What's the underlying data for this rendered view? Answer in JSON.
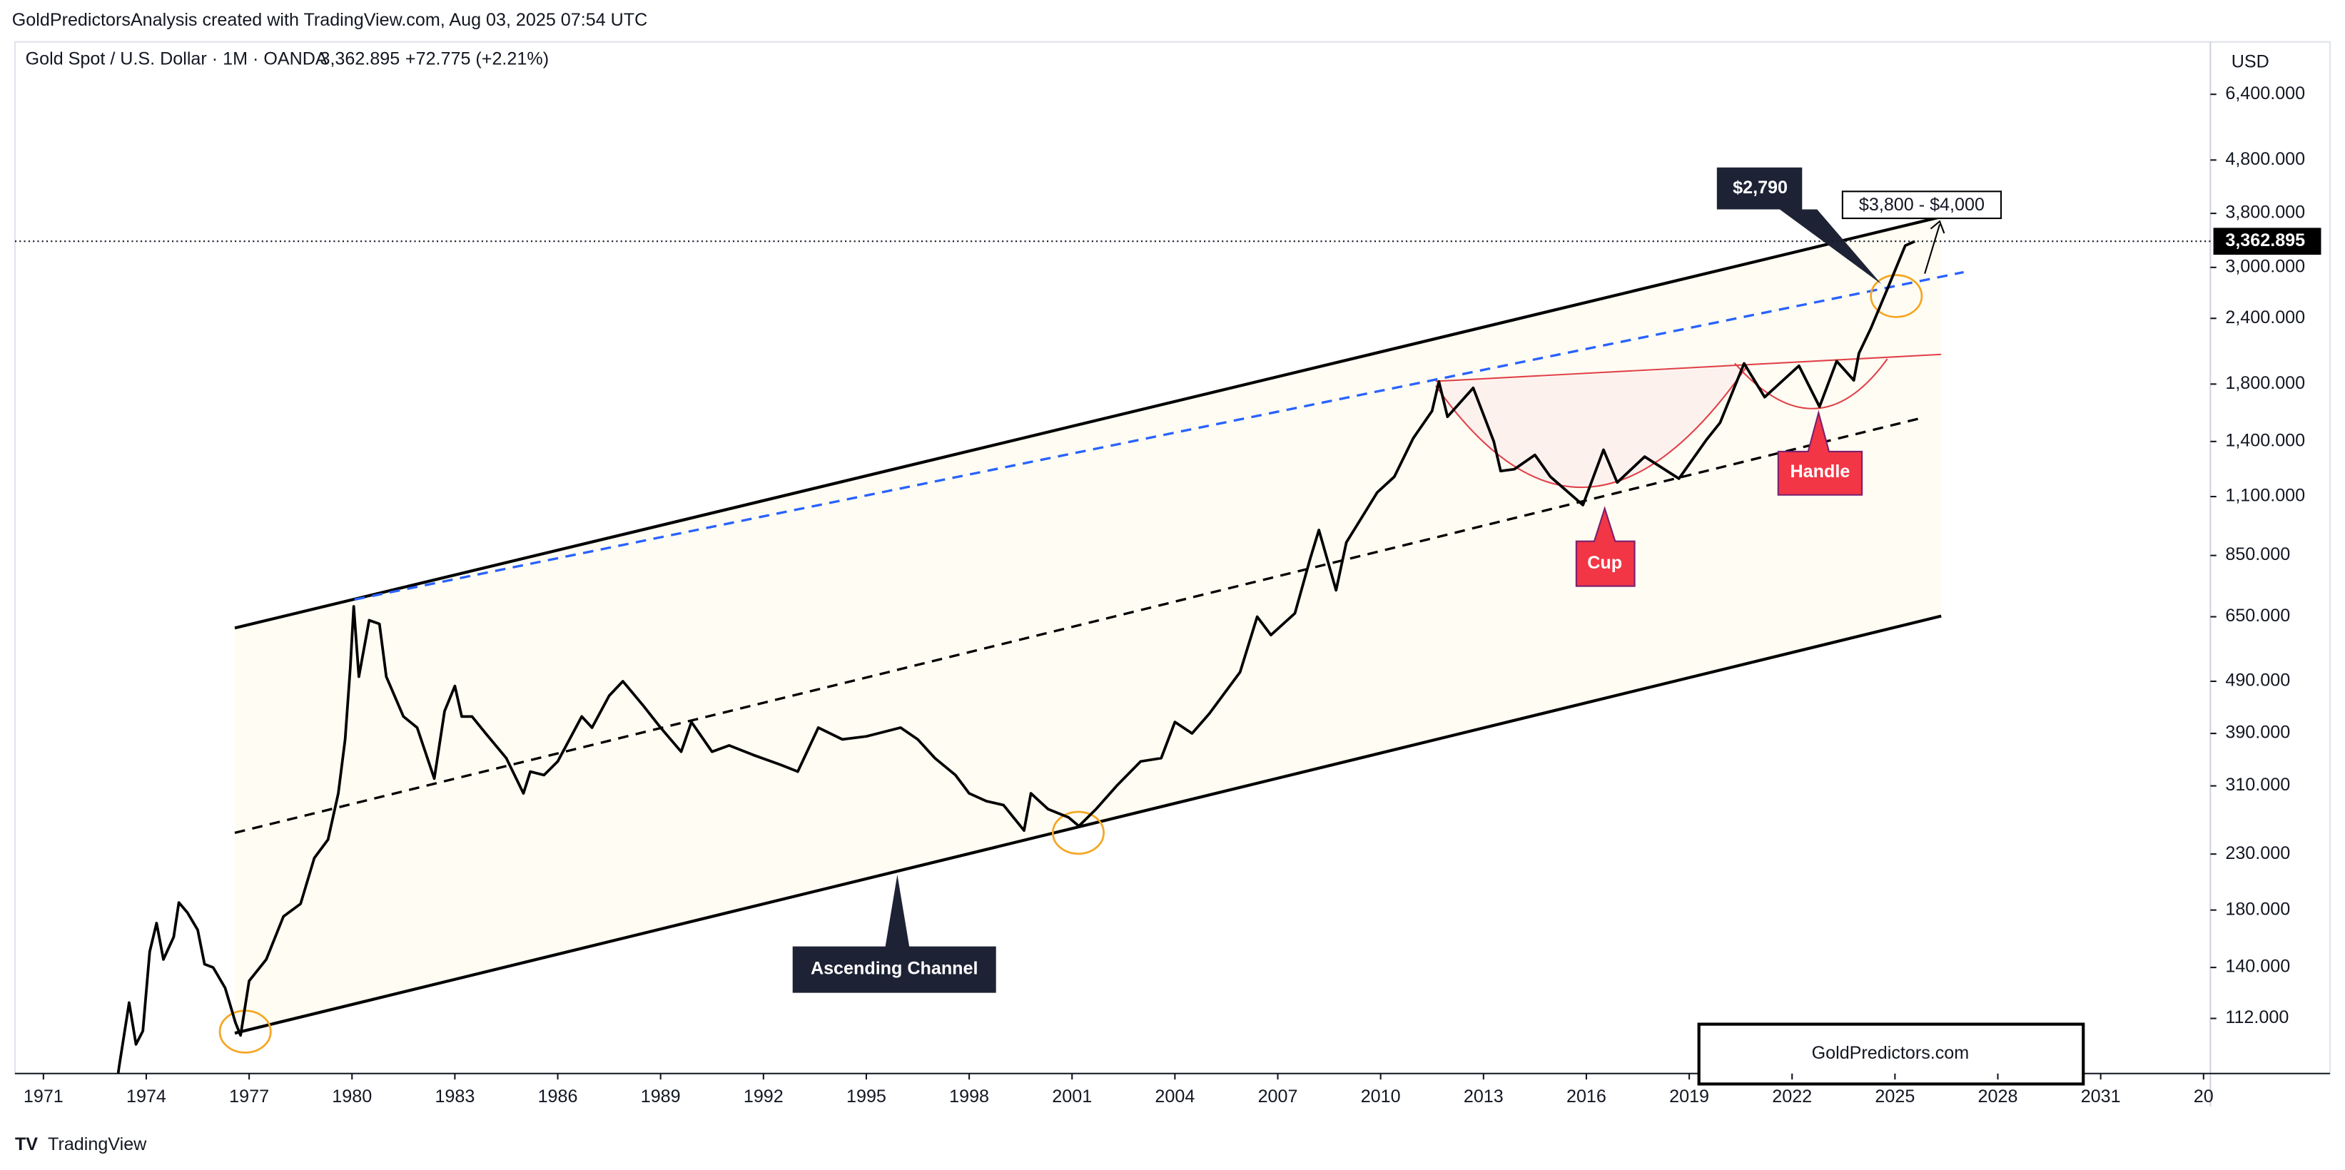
{
  "chart_data": {
    "type": "line",
    "header": "GoldPredictorsAnalysis created with TradingView.com, Aug 03, 2025 07:54 UTC",
    "symbol": "Gold Spot / U.S. Dollar · 1M · OANDA",
    "last_price": {
      "value": 3362.895,
      "label": "3,362.895"
    },
    "change": "+72.775 (+2.21%)",
    "currency": "USD",
    "footer": "TradingView",
    "watermark": "GoldPredictors.com",
    "annotations": [
      "$2,790",
      "$3,800 - $4,000",
      "Ascending Channel",
      "Cup",
      "Handle"
    ],
    "color": "#000000",
    "log_scale": true,
    "x": [
      1972.9,
      1973.2,
      1973.5,
      1973.7,
      1973.9,
      1974.1,
      1974.3,
      1974.5,
      1974.8,
      1974.95,
      1975.2,
      1975.5,
      1975.7,
      1975.95,
      1976.3,
      1976.6,
      1976.75,
      1977.0,
      1977.5,
      1978.0,
      1978.5,
      1978.9,
      1979.3,
      1979.6,
      1979.8,
      1979.95,
      1980.05,
      1980.2,
      1980.5,
      1980.8,
      1981.0,
      1981.5,
      1981.9,
      1982.4,
      1982.7,
      1983.0,
      1983.2,
      1983.5,
      1983.9,
      1984.5,
      1985.0,
      1985.2,
      1985.6,
      1986.0,
      1986.7,
      1987.0,
      1987.5,
      1987.9,
      1988.5,
      1989.0,
      1989.6,
      1989.9,
      1990.5,
      1991.0,
      1991.7,
      1992.5,
      1993.0,
      1993.6,
      1994.3,
      1995.0,
      1996.0,
      1996.5,
      1997.0,
      1997.6,
      1998.0,
      1998.5,
      1999.0,
      1999.6,
      1999.8,
      2000.3,
      2000.9,
      2001.2,
      2001.7,
      2002.3,
      2003.0,
      2003.6,
      2004.0,
      2004.5,
      2005.0,
      2005.9,
      2006.4,
      2006.8,
      2007.5,
      2007.95,
      2008.2,
      2008.7,
      2009.0,
      2009.9,
      2010.4,
      2010.95,
      2011.5,
      2011.7,
      2011.95,
      2012.7,
      2013.3,
      2013.5,
      2013.9,
      2014.5,
      2014.95,
      2015.9,
      2016.5,
      2016.9,
      2017.7,
      2018.7,
      2019.5,
      2019.9,
      2020.6,
      2021.2,
      2022.2,
      2022.8,
      2023.3,
      2023.8,
      2023.95,
      2024.3,
      2024.8,
      2025.3,
      2025.58
    ],
    "values": [
      64,
      90,
      120,
      100,
      106,
      150,
      170,
      145,
      160,
      186,
      178,
      165,
      142,
      140,
      128,
      110,
      104,
      132,
      145,
      175,
      185,
      226,
      245,
      300,
      380,
      520,
      680,
      500,
      640,
      630,
      500,
      420,
      400,
      320,
      430,
      480,
      420,
      420,
      390,
      350,
      300,
      330,
      325,
      345,
      420,
      400,
      460,
      490,
      440,
      400,
      360,
      410,
      360,
      370,
      355,
      340,
      330,
      400,
      380,
      385,
      400,
      380,
      350,
      325,
      300,
      290,
      285,
      255,
      300,
      280,
      270,
      260,
      280,
      310,
      345,
      350,
      410,
      390,
      425,
      510,
      650,
      600,
      660,
      840,
      950,
      730,
      900,
      1120,
      1200,
      1420,
      1600,
      1820,
      1560,
      1770,
      1400,
      1230,
      1240,
      1320,
      1200,
      1060,
      1350,
      1170,
      1310,
      1190,
      1410,
      1520,
      1970,
      1700,
      1950,
      1630,
      1990,
      1830,
      2060,
      2300,
      2750,
      3300,
      3362.895
    ],
    "xlim": [
      1970.17,
      2034.2
    ],
    "xticks": [
      1971,
      1974,
      1977,
      1980,
      1983,
      1986,
      1989,
      1992,
      1995,
      1998,
      2001,
      2004,
      2007,
      2010,
      2013,
      2016,
      2019,
      2022,
      2025,
      2028,
      2031,
      {
        "value": 2034,
        "label": "20"
      }
    ],
    "ylim": [
      88,
      8050
    ],
    "yticks": [
      {
        "value": 112,
        "label": "112.000"
      },
      {
        "value": 140,
        "label": "140.000"
      },
      {
        "value": 180,
        "label": "180.000"
      },
      {
        "value": 230,
        "label": "230.000"
      },
      {
        "value": 310,
        "label": "310.000"
      },
      {
        "value": 390,
        "label": "390.000"
      },
      {
        "value": 490,
        "label": "490.000"
      },
      {
        "value": 650,
        "label": "650.000"
      },
      {
        "value": 850,
        "label": "850.000"
      },
      {
        "value": 1100,
        "label": "1,100.000"
      },
      {
        "value": 1400,
        "label": "1,400.000"
      },
      {
        "value": 1800,
        "label": "1,800.000"
      },
      {
        "value": 2400,
        "label": "2,400.000"
      },
      {
        "value": 3000,
        "label": "3,000.000"
      },
      {
        "value": 3800,
        "label": "3,800.000"
      },
      {
        "value": 4800,
        "label": "4,800.000"
      },
      {
        "value": 6400,
        "label": "6,400.000"
      }
    ]
  }
}
